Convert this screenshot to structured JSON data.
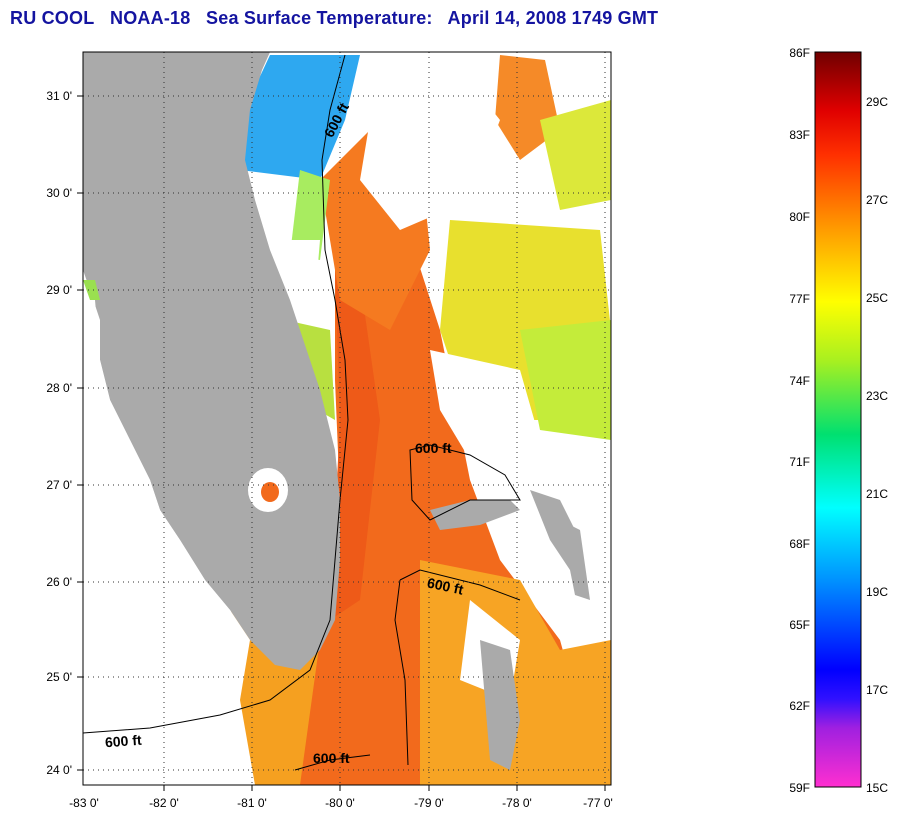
{
  "title": {
    "org": "RU COOL",
    "satellite": "NOAA-18",
    "product": "Sea Surface Temperature:",
    "datetime": "April 14, 2008 1749 GMT"
  },
  "map": {
    "lon_range": [
      -83,
      -76.9
    ],
    "lat_range": [
      23.85,
      31.4
    ],
    "lat_ticks": [
      "31 0'",
      "30 0'",
      "29 0'",
      "28 0'",
      "27 0'",
      "26 0'",
      "25 0'",
      "24 0'"
    ],
    "lon_ticks": [
      "-83 0'",
      "-82 0'",
      "-81 0'",
      "-80 0'",
      "-79 0'",
      "-78 0'",
      "-77 0'"
    ],
    "contour_labels": [
      "600 ft",
      "600 ft",
      "600 ft",
      "600 ft",
      "600 ft"
    ],
    "colors": {
      "land": "#aaaaaa",
      "cloud": "#ffffff",
      "gulf_stream": "#f26a1c",
      "shelf": "#f5a623",
      "cool": "#2ea8f0",
      "warm_yellow": "#e8e82e"
    }
  },
  "colorbar": {
    "f_labels": [
      "86F",
      "83F",
      "80F",
      "77F",
      "74F",
      "71F",
      "68F",
      "65F",
      "62F",
      "59F"
    ],
    "c_labels": [
      "29C",
      "27C",
      "25C",
      "23C",
      "21C",
      "19C",
      "17C",
      "15C"
    ],
    "gradient": [
      "#ff2fd0",
      "#6a1fd8",
      "#0000ff",
      "#00a0ff",
      "#00ffff",
      "#00e070",
      "#a8f020",
      "#ffff00",
      "#ff9a00",
      "#ff4000",
      "#e00000",
      "#700000"
    ]
  }
}
